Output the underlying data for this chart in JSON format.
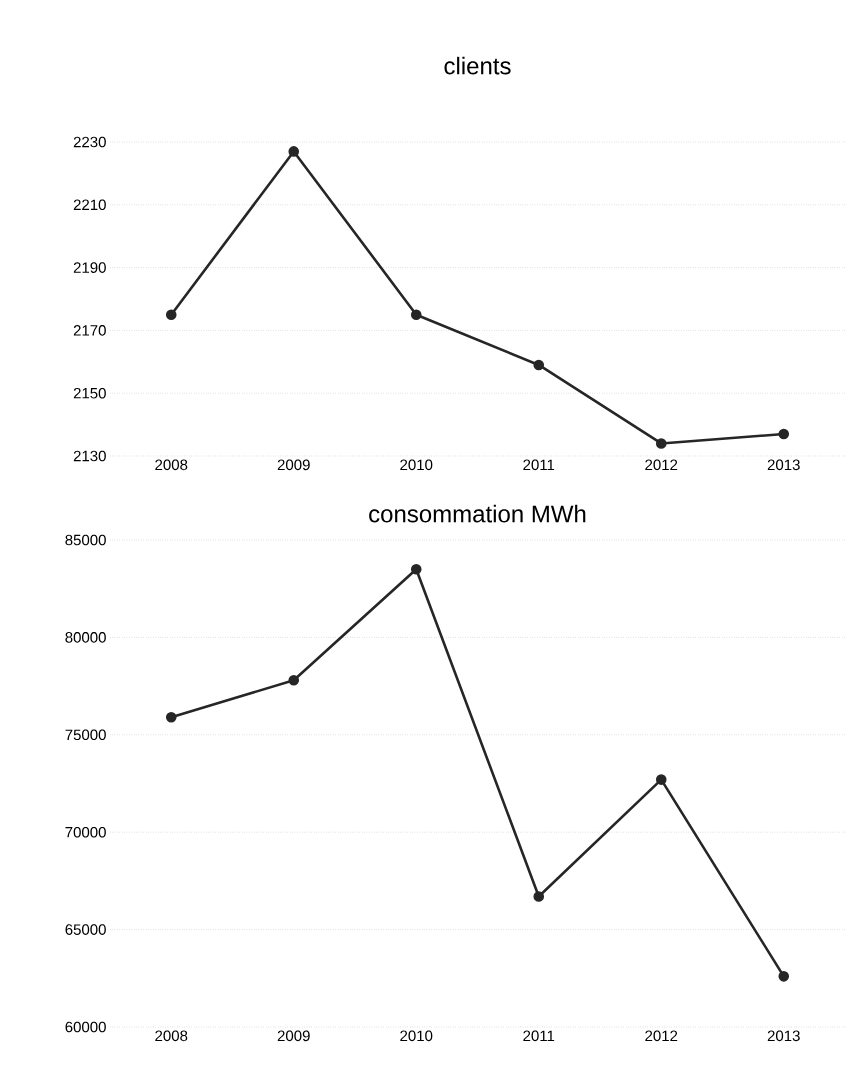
{
  "chart_data": [
    {
      "type": "line",
      "title": "clients",
      "categories": [
        "2008",
        "2009",
        "2010",
        "2011",
        "2012",
        "2013"
      ],
      "series": [
        {
          "color": "#262626",
          "values": [
            2175,
            2227,
            2175,
            2159,
            2134,
            2137
          ]
        }
      ],
      "ylim": [
        2130,
        2230
      ],
      "yticks": [
        2130,
        2150,
        2170,
        2190,
        2210,
        2230
      ],
      "grid": "y",
      "marker": "circle",
      "line_style": "solid"
    },
    {
      "type": "line",
      "title": "consommation MWh",
      "categories": [
        "2008",
        "2009",
        "2010",
        "2011",
        "2012",
        "2013"
      ],
      "series": [
        {
          "color": "#262626",
          "values": [
            75900,
            77800,
            83500,
            66700,
            72700,
            62600
          ]
        }
      ],
      "ylim": [
        60000,
        85000
      ],
      "yticks": [
        60000,
        65000,
        70000,
        75000,
        80000,
        85000
      ],
      "grid": "y",
      "marker": "circle",
      "line_style": "solid"
    }
  ]
}
